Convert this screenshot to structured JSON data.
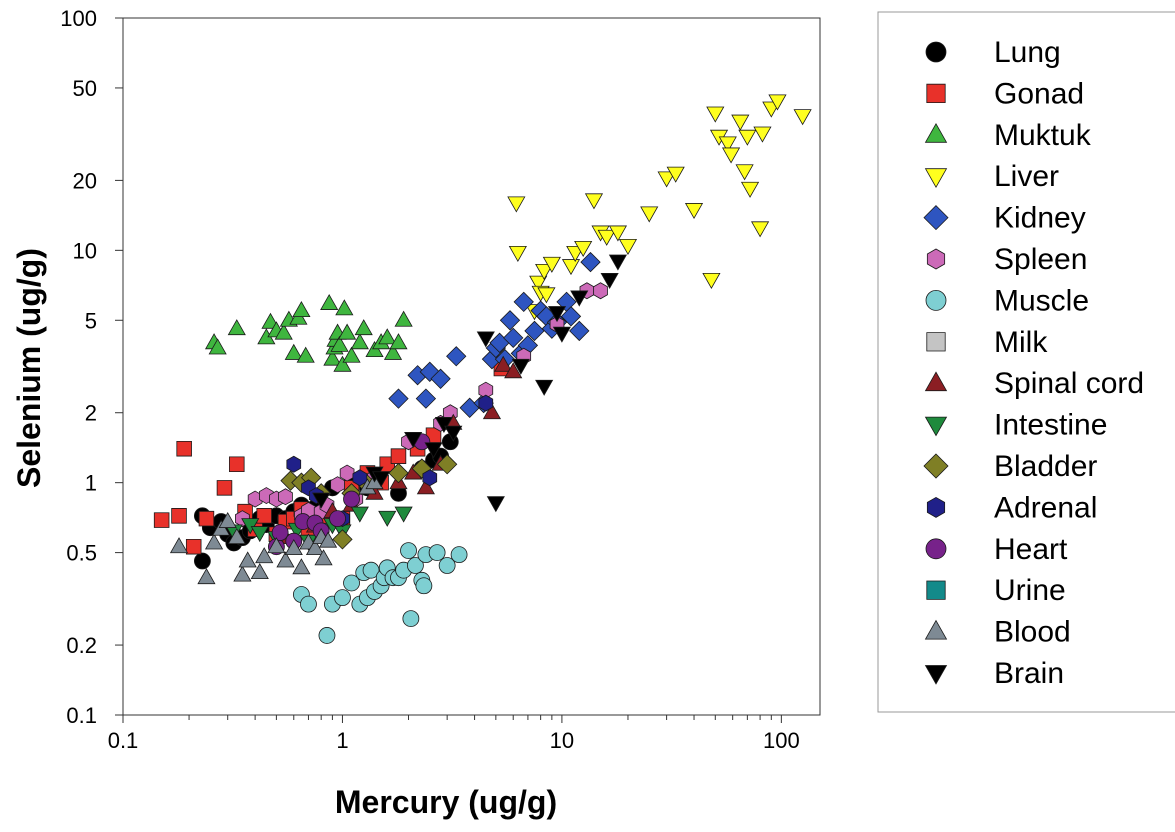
{
  "chart_data": {
    "type": "scatter",
    "title": "",
    "xlabel": "Mercury (ug/g)",
    "ylabel": "Selenium (ug/g)",
    "x_scale": "log",
    "y_scale": "log",
    "xlim": [
      0.1,
      150
    ],
    "ylim": [
      0.1,
      100
    ],
    "x_ticks": [
      0.1,
      1,
      10,
      100
    ],
    "x_tick_labels": [
      "0.1",
      "1",
      "10",
      "100"
    ],
    "y_ticks": [
      0.1,
      0.2,
      0.5,
      1,
      2,
      5,
      10,
      20,
      50,
      100
    ],
    "y_tick_labels": [
      "0.1",
      "0.2",
      "0.5",
      "1",
      "2",
      "5",
      "10",
      "20",
      "50",
      "100"
    ],
    "grid": false,
    "legend_position": "right",
    "series": [
      {
        "name": "Lung",
        "marker": "circle",
        "color": "#000000",
        "points": [
          [
            0.23,
            0.46
          ],
          [
            0.23,
            0.72
          ],
          [
            0.25,
            0.64
          ],
          [
            0.28,
            0.68
          ],
          [
            0.3,
            0.6
          ],
          [
            0.32,
            0.55
          ],
          [
            0.35,
            0.58
          ],
          [
            0.38,
            0.62
          ],
          [
            0.42,
            0.7
          ],
          [
            0.45,
            0.66
          ],
          [
            0.5,
            0.72
          ],
          [
            0.55,
            0.7
          ],
          [
            0.6,
            0.75
          ],
          [
            0.65,
            0.8
          ],
          [
            0.75,
            0.78
          ],
          [
            0.9,
            0.95
          ],
          [
            1.1,
            1.0
          ],
          [
            1.3,
            0.95
          ],
          [
            1.8,
            0.9
          ],
          [
            2.3,
            1.15
          ],
          [
            2.6,
            1.25
          ],
          [
            2.8,
            1.3
          ],
          [
            3.1,
            1.5
          ]
        ]
      },
      {
        "name": "Gonad",
        "marker": "square",
        "color": "#e8312a",
        "points": [
          [
            0.15,
            0.69
          ],
          [
            0.18,
            0.72
          ],
          [
            0.19,
            1.4
          ],
          [
            0.21,
            0.53
          ],
          [
            0.24,
            0.7
          ],
          [
            0.29,
            0.95
          ],
          [
            0.33,
            1.2
          ],
          [
            0.36,
            0.75
          ],
          [
            0.4,
            0.63
          ],
          [
            0.44,
            0.72
          ],
          [
            0.5,
            0.6
          ],
          [
            0.55,
            0.68
          ],
          [
            0.6,
            0.7
          ],
          [
            0.65,
            0.77
          ],
          [
            0.7,
            0.62
          ],
          [
            0.8,
            0.7
          ],
          [
            1.0,
            0.7
          ],
          [
            1.1,
            0.95
          ],
          [
            1.3,
            1.1
          ],
          [
            1.5,
            1.0
          ],
          [
            1.6,
            1.2
          ],
          [
            1.8,
            1.3
          ],
          [
            2.2,
            1.4
          ],
          [
            2.6,
            1.6
          ],
          [
            5.3,
            3.1
          ]
        ]
      },
      {
        "name": "Muktuk",
        "marker": "triangle-up",
        "color": "#3fb63f",
        "points": [
          [
            0.26,
            4.0
          ],
          [
            0.27,
            3.8
          ],
          [
            0.33,
            4.6
          ],
          [
            0.45,
            4.2
          ],
          [
            0.47,
            4.9
          ],
          [
            0.5,
            4.5
          ],
          [
            0.54,
            4.4
          ],
          [
            0.57,
            5.0
          ],
          [
            0.6,
            3.6
          ],
          [
            0.63,
            5.1
          ],
          [
            0.65,
            5.5
          ],
          [
            0.68,
            3.5
          ],
          [
            0.87,
            5.9
          ],
          [
            0.9,
            3.4
          ],
          [
            0.92,
            3.8
          ],
          [
            0.93,
            4.1
          ],
          [
            0.95,
            4.4
          ],
          [
            0.97,
            3.9
          ],
          [
            1.0,
            3.2
          ],
          [
            1.02,
            5.6
          ],
          [
            1.05,
            4.4
          ],
          [
            1.1,
            3.5
          ],
          [
            1.2,
            4.0
          ],
          [
            1.25,
            4.6
          ],
          [
            1.4,
            3.7
          ],
          [
            1.5,
            4.0
          ],
          [
            1.6,
            4.2
          ],
          [
            1.7,
            3.6
          ],
          [
            1.8,
            4.0
          ],
          [
            1.9,
            5.0
          ]
        ]
      },
      {
        "name": "Liver",
        "marker": "triangle-down",
        "color": "#ffff1e",
        "points": [
          [
            6.2,
            16.0
          ],
          [
            6.3,
            9.8
          ],
          [
            7.5,
            5.5
          ],
          [
            7.8,
            7.3
          ],
          [
            8.0,
            6.6
          ],
          [
            8.3,
            8.2
          ],
          [
            8.5,
            6.5
          ],
          [
            9.0,
            8.8
          ],
          [
            11.0,
            8.6
          ],
          [
            11.5,
            9.8
          ],
          [
            12.5,
            10.3
          ],
          [
            14.0,
            16.5
          ],
          [
            15.0,
            12.0
          ],
          [
            16.0,
            11.5
          ],
          [
            18.0,
            12.0
          ],
          [
            20.0,
            10.5
          ],
          [
            25.0,
            14.5
          ],
          [
            30.0,
            20.5
          ],
          [
            33.0,
            21.5
          ],
          [
            40.0,
            15.0
          ],
          [
            48.0,
            7.5
          ],
          [
            50.0,
            39.0
          ],
          [
            52.0,
            31.0
          ],
          [
            57.0,
            29.0
          ],
          [
            59.0,
            26.0
          ],
          [
            65.0,
            36.0
          ],
          [
            68.0,
            22.0
          ],
          [
            70.0,
            31.0
          ],
          [
            72.0,
            18.5
          ],
          [
            80.0,
            12.5
          ],
          [
            82.0,
            32.0
          ],
          [
            90.0,
            41.0
          ],
          [
            96.0,
            44.0
          ],
          [
            125.0,
            38.0
          ]
        ]
      },
      {
        "name": "Kidney",
        "marker": "diamond",
        "color": "#2e55c0",
        "points": [
          [
            1.8,
            2.3
          ],
          [
            2.2,
            2.9
          ],
          [
            2.4,
            2.3
          ],
          [
            2.5,
            3.0
          ],
          [
            2.8,
            2.8
          ],
          [
            3.3,
            3.5
          ],
          [
            3.8,
            2.1
          ],
          [
            4.4,
            2.2
          ],
          [
            4.8,
            3.4
          ],
          [
            5.0,
            3.8
          ],
          [
            5.2,
            4.0
          ],
          [
            5.5,
            3.4
          ],
          [
            5.8,
            5.0
          ],
          [
            6.0,
            4.2
          ],
          [
            6.5,
            3.6
          ],
          [
            6.7,
            6.0
          ],
          [
            7.0,
            3.9
          ],
          [
            7.5,
            4.5
          ],
          [
            8.0,
            5.5
          ],
          [
            8.5,
            5.2
          ],
          [
            9.0,
            4.6
          ],
          [
            9.5,
            4.9
          ],
          [
            10.5,
            6.0
          ],
          [
            11.0,
            5.2
          ],
          [
            12.0,
            4.5
          ],
          [
            13.5,
            8.9
          ]
        ]
      },
      {
        "name": "Spleen",
        "marker": "hexagon",
        "color": "#cc6ab8",
        "points": [
          [
            0.35,
            0.7
          ],
          [
            0.4,
            0.85
          ],
          [
            0.45,
            0.88
          ],
          [
            0.5,
            0.85
          ],
          [
            0.55,
            0.87
          ],
          [
            0.65,
            0.72
          ],
          [
            0.7,
            0.76
          ],
          [
            0.8,
            0.75
          ],
          [
            0.85,
            0.8
          ],
          [
            0.95,
            0.98
          ],
          [
            1.05,
            1.1
          ],
          [
            1.15,
            0.85
          ],
          [
            1.4,
            1.05
          ],
          [
            2.0,
            1.5
          ],
          [
            2.8,
            1.8
          ],
          [
            3.1,
            2.0
          ],
          [
            4.5,
            2.5
          ],
          [
            6.7,
            3.5
          ],
          [
            9.5,
            4.8
          ],
          [
            13.0,
            6.7
          ],
          [
            15.0,
            6.7
          ]
        ]
      },
      {
        "name": "Muscle",
        "marker": "circle",
        "color": "#7ecfd2",
        "points": [
          [
            0.65,
            0.33
          ],
          [
            0.7,
            0.3
          ],
          [
            0.85,
            0.22
          ],
          [
            0.9,
            0.3
          ],
          [
            1.0,
            0.32
          ],
          [
            1.1,
            0.37
          ],
          [
            1.2,
            0.3
          ],
          [
            1.25,
            0.41
          ],
          [
            1.3,
            0.32
          ],
          [
            1.35,
            0.42
          ],
          [
            1.4,
            0.34
          ],
          [
            1.5,
            0.36
          ],
          [
            1.55,
            0.39
          ],
          [
            1.6,
            0.43
          ],
          [
            1.7,
            0.39
          ],
          [
            1.8,
            0.39
          ],
          [
            1.9,
            0.42
          ],
          [
            2.0,
            0.51
          ],
          [
            2.05,
            0.26
          ],
          [
            2.15,
            0.44
          ],
          [
            2.3,
            0.38
          ],
          [
            2.35,
            0.36
          ],
          [
            2.4,
            0.49
          ],
          [
            2.7,
            0.5
          ],
          [
            3.0,
            0.44
          ],
          [
            3.4,
            0.49
          ]
        ]
      },
      {
        "name": "Milk",
        "marker": "square",
        "color": "#c4c4c4",
        "points": []
      },
      {
        "name": "Spinal cord",
        "marker": "triangle-up",
        "color": "#8b1e23",
        "points": [
          [
            0.55,
            0.58
          ],
          [
            0.75,
            0.65
          ],
          [
            0.9,
            0.75
          ],
          [
            1.1,
            0.8
          ],
          [
            1.4,
            0.9
          ],
          [
            1.8,
            1.0
          ],
          [
            2.1,
            1.1
          ],
          [
            2.4,
            0.95
          ],
          [
            2.8,
            1.2
          ],
          [
            3.2,
            1.8
          ],
          [
            4.8,
            2.0
          ],
          [
            5.4,
            3.2
          ],
          [
            6.0,
            3.0
          ]
        ]
      },
      {
        "name": "Intestine",
        "marker": "triangle-down",
        "color": "#1e8a3c",
        "points": [
          [
            0.32,
            0.62
          ],
          [
            0.38,
            0.66
          ],
          [
            0.42,
            0.61
          ],
          [
            0.5,
            0.58
          ],
          [
            0.62,
            0.63
          ],
          [
            0.7,
            0.56
          ],
          [
            0.8,
            0.63
          ],
          [
            0.9,
            0.66
          ],
          [
            1.0,
            0.62
          ],
          [
            1.2,
            0.74
          ],
          [
            1.6,
            0.71
          ],
          [
            1.9,
            0.74
          ]
        ]
      },
      {
        "name": "Bladder",
        "marker": "diamond",
        "color": "#7f7f25",
        "points": [
          [
            0.58,
            1.02
          ],
          [
            0.65,
            1.0
          ],
          [
            0.72,
            1.05
          ],
          [
            0.8,
            0.9
          ],
          [
            1.0,
            0.57
          ],
          [
            1.1,
            0.9
          ],
          [
            1.3,
            0.98
          ],
          [
            1.8,
            1.1
          ],
          [
            2.3,
            1.15
          ],
          [
            3.0,
            1.2
          ]
        ]
      },
      {
        "name": "Adrenal",
        "marker": "hexagon",
        "color": "#202089",
        "points": [
          [
            0.6,
            1.2
          ],
          [
            0.7,
            0.95
          ],
          [
            0.76,
            0.88
          ],
          [
            1.0,
            0.7
          ],
          [
            1.2,
            1.05
          ],
          [
            2.5,
            1.05
          ],
          [
            4.5,
            2.2
          ]
        ]
      },
      {
        "name": "Heart",
        "marker": "circle",
        "color": "#77228a",
        "points": [
          [
            0.5,
            0.53
          ],
          [
            0.52,
            0.61
          ],
          [
            0.6,
            0.56
          ],
          [
            0.66,
            0.68
          ],
          [
            0.75,
            0.67
          ],
          [
            0.8,
            0.62
          ],
          [
            0.95,
            0.7
          ],
          [
            1.1,
            0.85
          ],
          [
            2.3,
            1.5
          ]
        ]
      },
      {
        "name": "Urine",
        "marker": "square",
        "color": "#138a8a",
        "points": []
      },
      {
        "name": "Blood",
        "marker": "triangle-up",
        "color": "#7e8a94",
        "points": [
          [
            0.18,
            0.53
          ],
          [
            0.24,
            0.39
          ],
          [
            0.26,
            0.55
          ],
          [
            0.28,
            0.63
          ],
          [
            0.3,
            0.68
          ],
          [
            0.33,
            0.58
          ],
          [
            0.35,
            0.4
          ],
          [
            0.37,
            0.46
          ],
          [
            0.42,
            0.41
          ],
          [
            0.44,
            0.48
          ],
          [
            0.5,
            0.53
          ],
          [
            0.55,
            0.46
          ],
          [
            0.6,
            0.52
          ],
          [
            0.65,
            0.43
          ],
          [
            0.7,
            0.55
          ],
          [
            0.75,
            0.52
          ],
          [
            0.8,
            0.58
          ],
          [
            0.82,
            0.47
          ],
          [
            0.86,
            0.56
          ],
          [
            1.3,
            0.95
          ],
          [
            1.4,
            1.0
          ]
        ]
      },
      {
        "name": "Brain",
        "marker": "triangle-down",
        "color": "#000000",
        "points": [
          [
            0.8,
            0.85
          ],
          [
            1.4,
            1.1
          ],
          [
            1.5,
            1.05
          ],
          [
            2.1,
            1.55
          ],
          [
            2.6,
            1.4
          ],
          [
            2.9,
            1.8
          ],
          [
            3.2,
            1.65
          ],
          [
            4.5,
            4.2
          ],
          [
            5.0,
            0.82
          ],
          [
            6.5,
            3.2
          ],
          [
            8.3,
            2.6
          ],
          [
            9.5,
            5.4
          ],
          [
            10.0,
            4.4
          ],
          [
            12.0,
            6.3
          ],
          [
            16.5,
            7.5
          ],
          [
            18.0,
            9.0
          ]
        ]
      }
    ]
  }
}
